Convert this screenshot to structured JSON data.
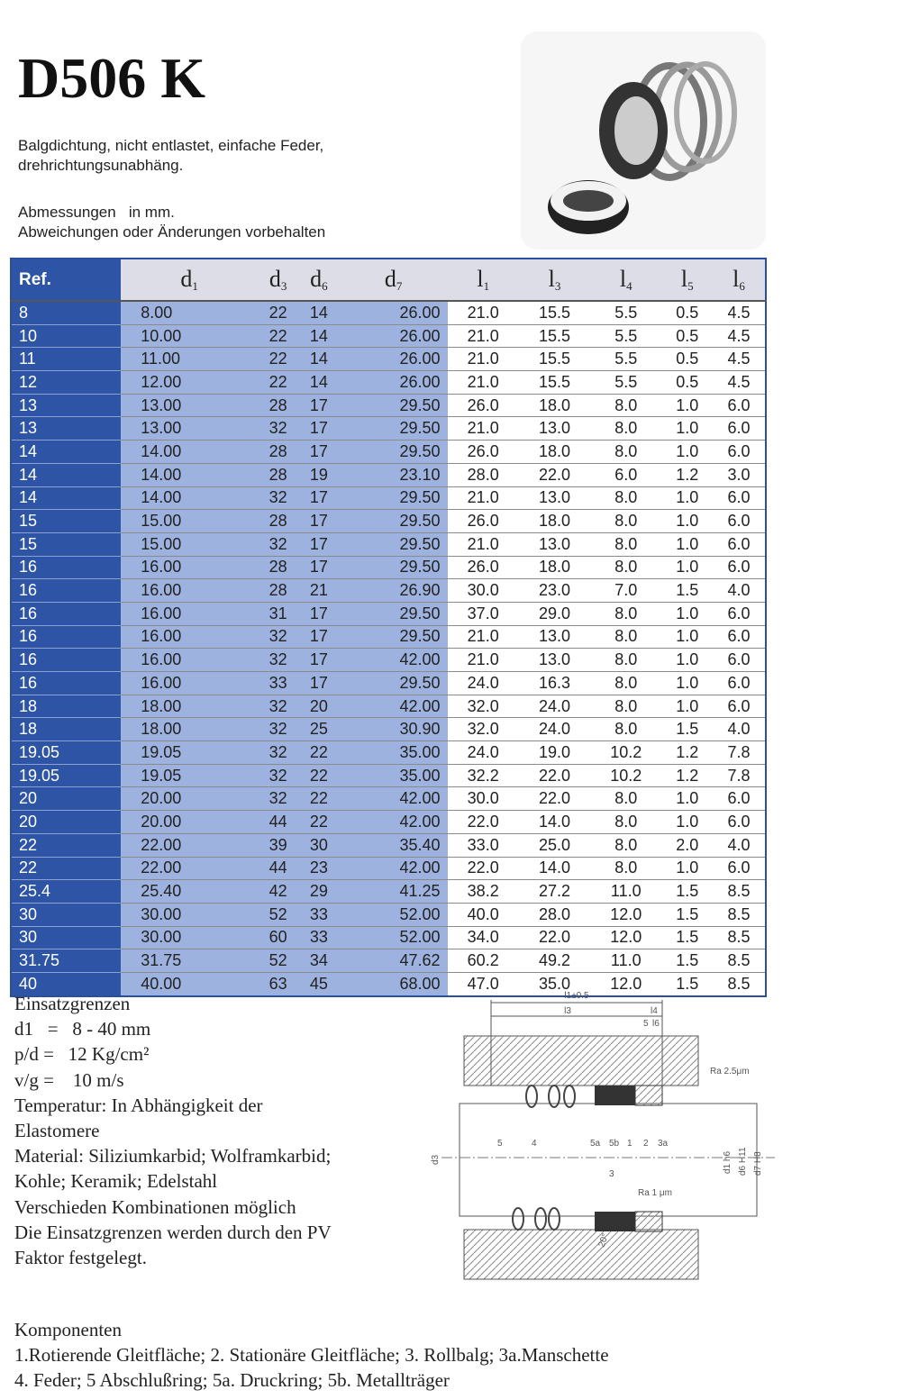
{
  "header": {
    "title": "D506 K",
    "description": [
      "Balgdichtung, nicht entlastet, einfache Feder,",
      "drehrichtungsunabhäng."
    ],
    "notes": [
      "Abmessungen   in mm.",
      "Abweichungen oder Änderungen vorbehalten"
    ]
  },
  "table": {
    "header": [
      "Ref.",
      {
        "letter": "d",
        "sub": "1"
      },
      {
        "letter": "d",
        "sub": "3"
      },
      {
        "letter": "d",
        "sub": "6"
      },
      {
        "letter": "d",
        "sub": "7"
      },
      {
        "letter": "l",
        "sub": "1"
      },
      {
        "letter": "l",
        "sub": "3"
      },
      {
        "letter": "l",
        "sub": "4"
      },
      {
        "letter": "l",
        "sub": "5"
      },
      {
        "letter": "l",
        "sub": "6"
      }
    ],
    "rows": [
      [
        "8",
        "8.00",
        "22",
        "14",
        "26.00",
        "21.0",
        "15.5",
        "5.5",
        "0.5",
        "4.5"
      ],
      [
        "10",
        "10.00",
        "22",
        "14",
        "26.00",
        "21.0",
        "15.5",
        "5.5",
        "0.5",
        "4.5"
      ],
      [
        "11",
        "11.00",
        "22",
        "14",
        "26.00",
        "21.0",
        "15.5",
        "5.5",
        "0.5",
        "4.5"
      ],
      [
        "12",
        "12.00",
        "22",
        "14",
        "26.00",
        "21.0",
        "15.5",
        "5.5",
        "0.5",
        "4.5"
      ],
      [
        "13",
        "13.00",
        "28",
        "17",
        "29.50",
        "26.0",
        "18.0",
        "8.0",
        "1.0",
        "6.0"
      ],
      [
        "13",
        "13.00",
        "32",
        "17",
        "29.50",
        "21.0",
        "13.0",
        "8.0",
        "1.0",
        "6.0"
      ],
      [
        "14",
        "14.00",
        "28",
        "17",
        "29.50",
        "26.0",
        "18.0",
        "8.0",
        "1.0",
        "6.0"
      ],
      [
        "14",
        "14.00",
        "28",
        "19",
        "23.10",
        "28.0",
        "22.0",
        "6.0",
        "1.2",
        "3.0"
      ],
      [
        "14",
        "14.00",
        "32",
        "17",
        "29.50",
        "21.0",
        "13.0",
        "8.0",
        "1.0",
        "6.0"
      ],
      [
        "15",
        "15.00",
        "28",
        "17",
        "29.50",
        "26.0",
        "18.0",
        "8.0",
        "1.0",
        "6.0"
      ],
      [
        "15",
        "15.00",
        "32",
        "17",
        "29.50",
        "21.0",
        "13.0",
        "8.0",
        "1.0",
        "6.0"
      ],
      [
        "16",
        "16.00",
        "28",
        "17",
        "29.50",
        "26.0",
        "18.0",
        "8.0",
        "1.0",
        "6.0"
      ],
      [
        "16",
        "16.00",
        "28",
        "21",
        "26.90",
        "30.0",
        "23.0",
        "7.0",
        "1.5",
        "4.0"
      ],
      [
        "16",
        "16.00",
        "31",
        "17",
        "29.50",
        "37.0",
        "29.0",
        "8.0",
        "1.0",
        "6.0"
      ],
      [
        "16",
        "16.00",
        "32",
        "17",
        "29.50",
        "21.0",
        "13.0",
        "8.0",
        "1.0",
        "6.0"
      ],
      [
        "16",
        "16.00",
        "32",
        "17",
        "42.00",
        "21.0",
        "13.0",
        "8.0",
        "1.0",
        "6.0"
      ],
      [
        "16",
        "16.00",
        "33",
        "17",
        "29.50",
        "24.0",
        "16.3",
        "8.0",
        "1.0",
        "6.0"
      ],
      [
        "18",
        "18.00",
        "32",
        "20",
        "42.00",
        "32.0",
        "24.0",
        "8.0",
        "1.0",
        "6.0"
      ],
      [
        "18",
        "18.00",
        "32",
        "25",
        "30.90",
        "32.0",
        "24.0",
        "8.0",
        "1.5",
        "4.0"
      ],
      [
        "19.05",
        "19.05",
        "32",
        "22",
        "35.00",
        "24.0",
        "19.0",
        "10.2",
        "1.2",
        "7.8"
      ],
      [
        "19.05",
        "19.05",
        "32",
        "22",
        "35.00",
        "32.2",
        "22.0",
        "10.2",
        "1.2",
        "7.8"
      ],
      [
        "20",
        "20.00",
        "32",
        "22",
        "42.00",
        "30.0",
        "22.0",
        "8.0",
        "1.0",
        "6.0"
      ],
      [
        "20",
        "20.00",
        "44",
        "22",
        "42.00",
        "22.0",
        "14.0",
        "8.0",
        "1.0",
        "6.0"
      ],
      [
        "22",
        "22.00",
        "39",
        "30",
        "35.40",
        "33.0",
        "25.0",
        "8.0",
        "2.0",
        "4.0"
      ],
      [
        "22",
        "22.00",
        "44",
        "23",
        "42.00",
        "22.0",
        "14.0",
        "8.0",
        "1.0",
        "6.0"
      ],
      [
        "25.4",
        "25.40",
        "42",
        "29",
        "41.25",
        "38.2",
        "27.2",
        "11.0",
        "1.5",
        "8.5"
      ],
      [
        "30",
        "30.00",
        "52",
        "33",
        "52.00",
        "40.0",
        "28.0",
        "12.0",
        "1.5",
        "8.5"
      ],
      [
        "30",
        "30.00",
        "60",
        "33",
        "52.00",
        "34.0",
        "22.0",
        "12.0",
        "1.5",
        "8.5"
      ],
      [
        "31.75",
        "31.75",
        "52",
        "34",
        "47.62",
        "60.2",
        "49.2",
        "11.0",
        "1.5",
        "8.5"
      ],
      [
        "40",
        "40.00",
        "63",
        "45",
        "68.00",
        "47.0",
        "35.0",
        "12.0",
        "1.5",
        "8.5"
      ]
    ]
  },
  "limits": {
    "lines": [
      "Einsatzgrenzen",
      "d1   =   8 - 40 mm",
      "p/d =   12 Kg/cm²",
      "v/g =    10 m/s",
      "Temperatur: In Abhängigkeit der",
      "Elastomere",
      "Material: Siliziumkarbid; Wolframkarbid;",
      "Kohle; Keramik; Edelstahl",
      "Verschieden Kombinationen möglich",
      "Die Einsatzgrenzen werden durch den PV",
      "Faktor festgelegt."
    ]
  },
  "drawing": {
    "labels": {
      "l1": "l1±0.5",
      "l3": "l3",
      "l4": "l4",
      "l5": "5",
      "l6": "l6",
      "ra_top": "Ra  2.5μm",
      "ra_bottom": "Ra  1  μm",
      "p5": "5",
      "p4": "4",
      "p5a": "5a",
      "p5b": "5b",
      "p1": "1",
      "p2": "2",
      "p3a": "3a",
      "p3": "3",
      "d3": "d3",
      "d1": "d1  h6",
      "d6": "d6  H11",
      "d7": "d7  H8",
      "angle": "20°"
    }
  },
  "components": {
    "lines": [
      "Komponenten",
      "1.Rotierende Gleitfläche; 2. Stationäre Gleitfläche; 3. Rollbalg; 3a.Manschette",
      "4. Feder; 5 Abschlußring; 5a. Druckring; 5b. Metallträger"
    ]
  }
}
